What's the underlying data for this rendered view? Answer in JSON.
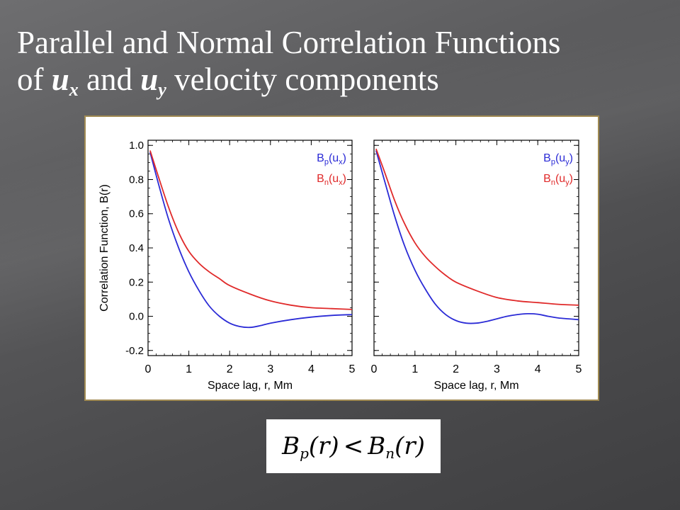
{
  "title": {
    "line1": "Parallel and Normal Correlation Functions",
    "line2_prefix": "of ",
    "var1": "u",
    "var1_sub": "x",
    "line2_mid": " and ",
    "var2": "u",
    "var2_sub": "y",
    "line2_suffix": " velocity components"
  },
  "formula": {
    "lhs": "B",
    "lhs_sub": "p",
    "lhs_arg": "(r)",
    "op": "<",
    "rhs": "B",
    "rhs_sub": "n",
    "rhs_arg": "(r)"
  },
  "colors": {
    "parallel": "#2b2bd6",
    "normal": "#e02a2a",
    "frame": "#a08a52"
  },
  "chart_data": [
    {
      "type": "line",
      "xlabel": "Space lag, r, Mm",
      "ylabel": "Correlation Function, B(r)",
      "xlim": [
        0,
        5
      ],
      "ylim": [
        -0.23,
        1.03
      ],
      "xticks": [
        0,
        1,
        2,
        3,
        4,
        5
      ],
      "yticks": [
        -0.2,
        0.0,
        0.2,
        0.4,
        0.6,
        0.8,
        1.0
      ],
      "ytick_labels": [
        "-0.2",
        "0.0",
        "0.2",
        "0.4",
        "0.6",
        "0.8",
        "1.0"
      ],
      "legend_position": "top-right",
      "series": [
        {
          "name": "Bp(ux)",
          "legend_base": "B",
          "legend_sub": "p",
          "legend_arg": "u",
          "legend_arg_sub": "x",
          "color": "#2b2bd6",
          "x": [
            0.05,
            0.25,
            0.5,
            0.75,
            1.0,
            1.25,
            1.5,
            1.75,
            2.0,
            2.25,
            2.5,
            2.75,
            3.0,
            3.5,
            4.0,
            4.5,
            5.0
          ],
          "y": [
            0.96,
            0.78,
            0.57,
            0.4,
            0.26,
            0.15,
            0.06,
            0.0,
            -0.04,
            -0.06,
            -0.065,
            -0.055,
            -0.04,
            -0.02,
            -0.005,
            0.005,
            0.01
          ]
        },
        {
          "name": "Bn(ux)",
          "legend_base": "B",
          "legend_sub": "n",
          "legend_arg": "u",
          "legend_arg_sub": "x",
          "color": "#e02a2a",
          "x": [
            0.05,
            0.25,
            0.5,
            0.75,
            1.0,
            1.25,
            1.5,
            1.75,
            2.0,
            2.5,
            3.0,
            3.5,
            4.0,
            4.5,
            5.0
          ],
          "y": [
            0.97,
            0.82,
            0.64,
            0.49,
            0.38,
            0.31,
            0.26,
            0.22,
            0.18,
            0.13,
            0.09,
            0.065,
            0.05,
            0.045,
            0.04
          ]
        }
      ]
    },
    {
      "type": "line",
      "xlabel": "Space lag, r, Mm",
      "ylabel": "",
      "xlim": [
        0,
        5
      ],
      "ylim": [
        -0.23,
        1.03
      ],
      "xticks": [
        0,
        1,
        2,
        3,
        4,
        5
      ],
      "yticks": [
        -0.2,
        0.0,
        0.2,
        0.4,
        0.6,
        0.8,
        1.0
      ],
      "ytick_labels": [],
      "legend_position": "top-right",
      "series": [
        {
          "name": "Bp(uy)",
          "legend_base": "B",
          "legend_sub": "p",
          "legend_arg": "u",
          "legend_arg_sub": "y",
          "color": "#2b2bd6",
          "x": [
            0.05,
            0.25,
            0.5,
            0.75,
            1.0,
            1.25,
            1.5,
            1.75,
            2.0,
            2.25,
            2.5,
            2.75,
            3.0,
            3.25,
            3.5,
            3.75,
            4.0,
            4.25,
            4.5,
            4.75,
            5.0
          ],
          "y": [
            0.97,
            0.8,
            0.59,
            0.41,
            0.27,
            0.16,
            0.07,
            0.01,
            -0.025,
            -0.04,
            -0.04,
            -0.03,
            -0.015,
            0.0,
            0.01,
            0.015,
            0.012,
            0.0,
            -0.01,
            -0.015,
            -0.02
          ]
        },
        {
          "name": "Bn(uy)",
          "legend_base": "B",
          "legend_sub": "n",
          "legend_arg": "u",
          "legend_arg_sub": "y",
          "color": "#e02a2a",
          "x": [
            0.05,
            0.25,
            0.5,
            0.75,
            1.0,
            1.25,
            1.5,
            1.75,
            2.0,
            2.5,
            3.0,
            3.5,
            4.0,
            4.5,
            5.0
          ],
          "y": [
            0.98,
            0.85,
            0.68,
            0.54,
            0.43,
            0.35,
            0.29,
            0.24,
            0.2,
            0.15,
            0.11,
            0.09,
            0.08,
            0.07,
            0.065
          ]
        }
      ]
    }
  ]
}
